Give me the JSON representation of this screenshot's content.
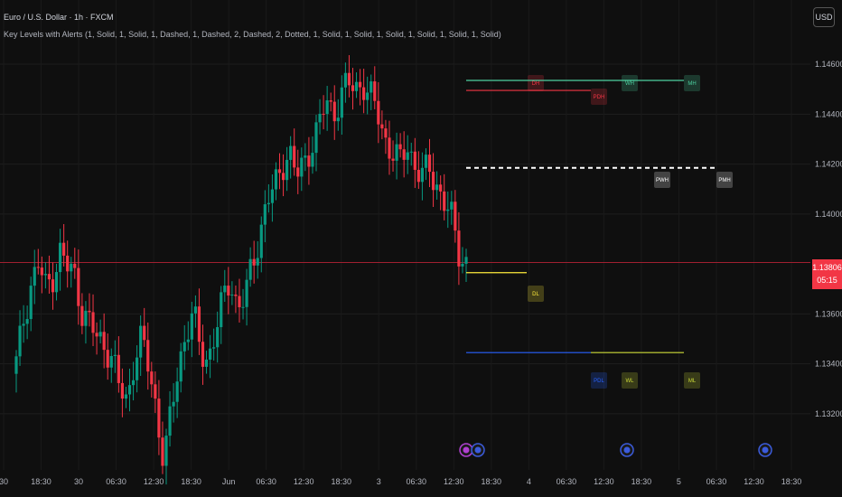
{
  "header": {
    "title": "Euro / U.S. Dollar · 1h · FXCM",
    "indicator": "Key Levels with Alerts (1, Solid, 1, Solid, 1, Dashed, 1, Dashed, 2, Dashed, 2, Dotted, 1, Solid, 1, Solid, 1, Solid, 1, Solid, 1, Solid, 1, Solid)"
  },
  "currency_button": "USD",
  "price_tag": {
    "price": "1.13806",
    "countdown": "05:15",
    "color": "#f23645"
  },
  "colors": {
    "up": "#089981",
    "down": "#f23645",
    "background": "#0f0f0f"
  },
  "chart_data": {
    "type": "candlestick",
    "ylim": [
      1.1312,
      1.1464
    ],
    "price_ticks": [
      "1.14600",
      "1.14400",
      "1.14200",
      "1.14000",
      "1.13600",
      "1.13400",
      "1.13200"
    ],
    "time_ticks": [
      "30",
      "18:30",
      "30",
      "06:30",
      "12:30",
      "18:30",
      "Jun",
      "06:30",
      "12:30",
      "18:30",
      "3",
      "06:30",
      "12:30",
      "18:30",
      "4",
      "06:30",
      "12:30",
      "18:30",
      "5",
      "06:30",
      "12:30",
      "18:30"
    ],
    "current_price": 1.13806,
    "close_path": [
      1.134,
      1.1358,
      1.1372,
      1.138,
      1.137,
      1.1376,
      1.1385,
      1.1378,
      1.1375,
      1.136,
      1.1356,
      1.135,
      1.1348,
      1.1342,
      1.133,
      1.1325,
      1.1342,
      1.135,
      1.1338,
      1.1322,
      1.13,
      1.132,
      1.134,
      1.1352,
      1.136,
      1.1345,
      1.1342,
      1.1352,
      1.1365,
      1.1375,
      1.1362,
      1.1366,
      1.138,
      1.1392,
      1.1405,
      1.141,
      1.142,
      1.1425,
      1.1415,
      1.142,
      1.1428,
      1.1435,
      1.1445,
      1.144,
      1.1448,
      1.1452,
      1.145,
      1.1453,
      1.1447,
      1.144,
      1.143,
      1.1425,
      1.142,
      1.1428,
      1.142,
      1.1415,
      1.1418,
      1.1412,
      1.1405,
      1.1398,
      1.1385,
      1.13806
    ],
    "levels": [
      {
        "label": "DH",
        "price": 1.14495,
        "color": "#f23645",
        "style": "solid"
      },
      {
        "label": "PDH",
        "price": 1.14495,
        "color": "#f23645",
        "style": "solid"
      },
      {
        "label": "WH",
        "price": 1.14535,
        "color": "#4dd0a0",
        "style": "solid"
      },
      {
        "label": "MH",
        "price": 1.14535,
        "color": "#4dd0a0",
        "style": "solid"
      },
      {
        "label": "PWH",
        "price": 1.14185,
        "color": "#ffffff",
        "style": "dashed"
      },
      {
        "label": "PMH",
        "price": 1.14185,
        "color": "#ffffff",
        "style": "dashed"
      },
      {
        "label": "DL",
        "price": 1.13765,
        "color": "#ffeb3b",
        "style": "solid"
      },
      {
        "label": "PDL",
        "price": 1.13445,
        "color": "#2962ff",
        "style": "solid"
      },
      {
        "label": "WL",
        "price": 1.13445,
        "color": "#cddc39",
        "style": "solid"
      },
      {
        "label": "ML",
        "price": 1.13445,
        "color": "#cddc39",
        "style": "solid"
      }
    ]
  }
}
